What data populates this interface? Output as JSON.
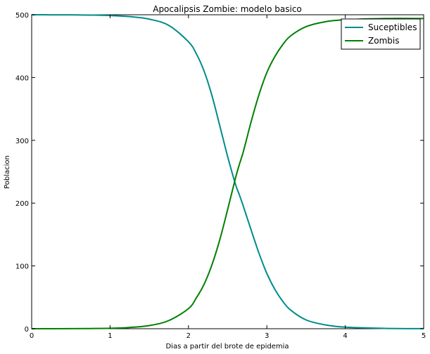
{
  "chart_data": {
    "type": "line",
    "title": "Apocalipsis Zombie: modelo basico",
    "xlabel": "Dias a partir del brote de epidemia",
    "ylabel": "Poblacion",
    "xlim": [
      0,
      5
    ],
    "ylim": [
      0,
      500
    ],
    "xticks": [
      0,
      1,
      2,
      3,
      4,
      5
    ],
    "yticks": [
      0,
      100,
      200,
      300,
      400,
      500
    ],
    "grid": false,
    "legend_position": "top-right",
    "x": [
      0,
      0.25,
      0.5,
      0.75,
      1.0,
      1.25,
      1.5,
      1.75,
      2.0,
      2.1,
      2.2,
      2.3,
      2.4,
      2.5,
      2.6,
      2.65,
      2.7,
      2.8,
      2.9,
      3.0,
      3.1,
      3.2,
      3.3,
      3.5,
      3.75,
      4.0,
      4.5,
      5.0
    ],
    "series": [
      {
        "name": "Suceptibles",
        "color": "#008b8b",
        "values": [
          500,
          499.9,
          499.8,
          499.5,
          498.8,
          497,
          493,
          483,
          457,
          438,
          410,
          371,
          323,
          274,
          230,
          213,
          195,
          157,
          120,
          88,
          63,
          44,
          30,
          14,
          6,
          2.5,
          0.6,
          0.1
        ]
      },
      {
        "name": "Zombis",
        "color": "#008000",
        "values": [
          0,
          0,
          0.1,
          0.3,
          0.7,
          2,
          5,
          13,
          32,
          49,
          71,
          102,
          142,
          190,
          240,
          262,
          282,
          330,
          373,
          408,
          433,
          452,
          466,
          481,
          489,
          492,
          494,
          494
        ]
      }
    ]
  }
}
